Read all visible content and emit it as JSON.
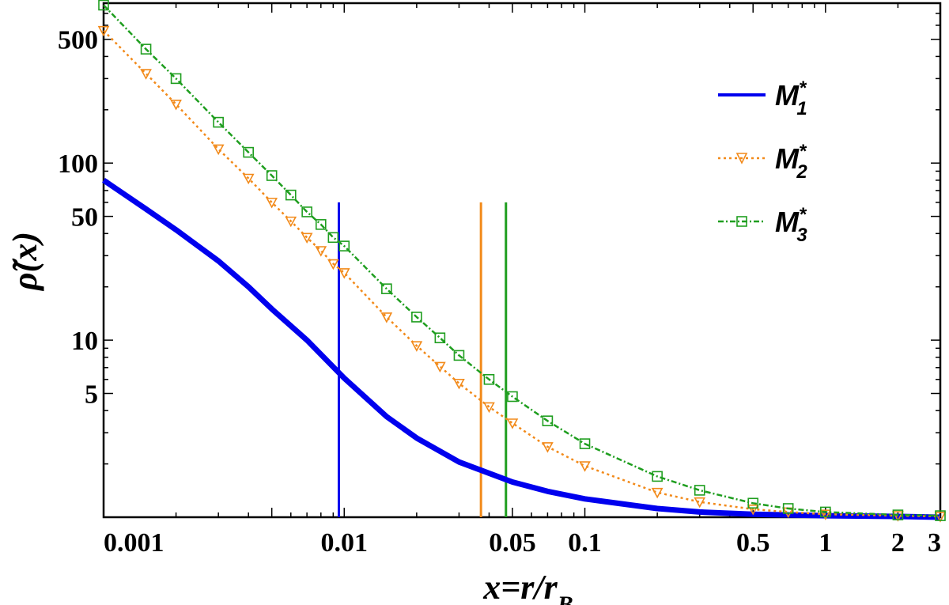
{
  "chart_data": {
    "type": "line",
    "title": "",
    "xlabel": "x = r / r_B",
    "ylabel": "ρ̃(x)",
    "xscale": "log",
    "yscale": "log",
    "xlim": [
      0.001,
      3
    ],
    "ylim": [
      1,
      800
    ],
    "x_ticks": [
      {
        "value": 0.001,
        "label": "0.001"
      },
      {
        "value": 0.01,
        "label": "0.01"
      },
      {
        "value": 0.05,
        "label": "0.05"
      },
      {
        "value": 0.1,
        "label": "0.1"
      },
      {
        "value": 0.5,
        "label": "0.5"
      },
      {
        "value": 1,
        "label": "1"
      },
      {
        "value": 2,
        "label": "2"
      },
      {
        "value": 3,
        "label": "3"
      }
    ],
    "y_ticks": [
      {
        "value": 5,
        "label": "5"
      },
      {
        "value": 10,
        "label": "10"
      },
      {
        "value": 50,
        "label": "50"
      },
      {
        "value": 100,
        "label": "100"
      },
      {
        "value": 500,
        "label": "500"
      }
    ],
    "grid": false,
    "legend_position": "top-right",
    "series": [
      {
        "name": "M1*",
        "color": "#0000ee",
        "style": "solid",
        "marker": "none",
        "x": [
          0.001,
          0.0015,
          0.002,
          0.003,
          0.004,
          0.005,
          0.007,
          0.01,
          0.015,
          0.02,
          0.03,
          0.05,
          0.07,
          0.1,
          0.2,
          0.3,
          0.5,
          0.7,
          1,
          2,
          3
        ],
        "y": [
          80,
          55,
          42,
          28,
          20,
          15,
          10,
          6.1,
          3.7,
          2.8,
          2.05,
          1.58,
          1.4,
          1.27,
          1.12,
          1.07,
          1.04,
          1.03,
          1.02,
          1.01,
          1.0
        ]
      },
      {
        "name": "M2*",
        "color": "#f28a1a",
        "style": "dotted",
        "marker": "triangle-down",
        "x": [
          0.001,
          0.0015,
          0.002,
          0.003,
          0.004,
          0.005,
          0.006,
          0.007,
          0.008,
          0.009,
          0.01,
          0.015,
          0.02,
          0.025,
          0.03,
          0.04,
          0.05,
          0.07,
          0.1,
          0.2,
          0.3,
          0.5,
          0.7,
          1,
          2,
          3
        ],
        "y": [
          560,
          320,
          215,
          120,
          82,
          60,
          47,
          38,
          32,
          27,
          24,
          13.5,
          9.3,
          7.1,
          5.7,
          4.2,
          3.4,
          2.5,
          1.95,
          1.38,
          1.22,
          1.11,
          1.07,
          1.04,
          1.02,
          1.01
        ]
      },
      {
        "name": "M3*",
        "color": "#1f9e1f",
        "style": "dashed",
        "marker": "square",
        "x": [
          0.001,
          0.0015,
          0.002,
          0.003,
          0.004,
          0.005,
          0.006,
          0.007,
          0.008,
          0.009,
          0.01,
          0.015,
          0.02,
          0.025,
          0.03,
          0.04,
          0.05,
          0.07,
          0.1,
          0.2,
          0.3,
          0.5,
          0.7,
          1,
          2,
          3
        ],
        "y": [
          780,
          440,
          300,
          170,
          115,
          85,
          66,
          53,
          45,
          38,
          34,
          19.5,
          13.5,
          10.3,
          8.2,
          6.0,
          4.8,
          3.5,
          2.6,
          1.7,
          1.42,
          1.2,
          1.12,
          1.07,
          1.03,
          1.02
        ]
      }
    ],
    "reference_lines": [
      {
        "series": "M1*",
        "x": 0.0095,
        "y_top": 60
      },
      {
        "series": "M2*",
        "x": 0.037,
        "y_top": 60
      },
      {
        "series": "M3*",
        "x": 0.047,
        "y_top": 60
      }
    ]
  }
}
